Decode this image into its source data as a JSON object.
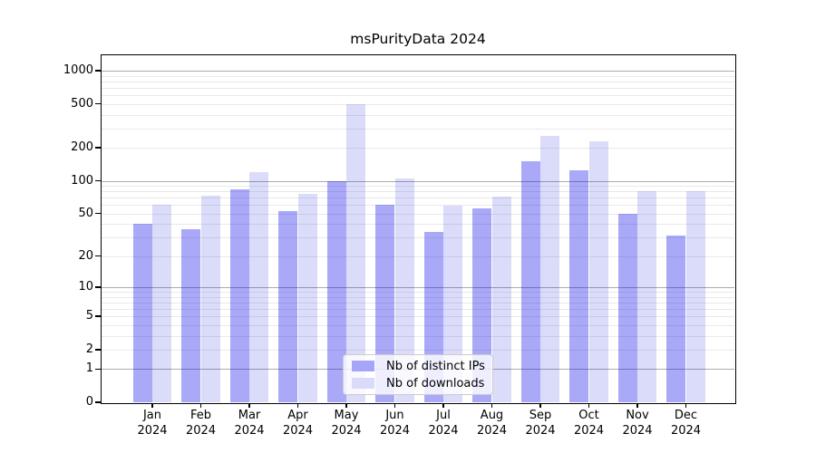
{
  "chart_data": {
    "type": "bar",
    "title": "msPurityData 2024",
    "categories": [
      "Jan 2024",
      "Feb 2024",
      "Mar 2024",
      "Apr 2024",
      "May 2024",
      "Jun 2024",
      "Jul 2024",
      "Aug 2024",
      "Sep 2024",
      "Oct 2024",
      "Nov 2024",
      "Dec 2024"
    ],
    "x_tick_lines": [
      [
        "Jan",
        "2024"
      ],
      [
        "Feb",
        "2024"
      ],
      [
        "Mar",
        "2024"
      ],
      [
        "Apr",
        "2024"
      ],
      [
        "May",
        "2024"
      ],
      [
        "Jun",
        "2024"
      ],
      [
        "Jul",
        "2024"
      ],
      [
        "Aug",
        "2024"
      ],
      [
        "Sep",
        "2024"
      ],
      [
        "Oct",
        "2024"
      ],
      [
        "Nov",
        "2024"
      ],
      [
        "Dec",
        "2024"
      ]
    ],
    "series": [
      {
        "name": "Nb of distinct IPs",
        "key": "distinct-ips",
        "color": "rgba(8,8,236,0.35)",
        "solid_color": "#a6a6f8",
        "values": [
          40,
          36,
          84,
          53,
          100,
          60,
          34,
          56,
          150,
          125,
          50,
          31
        ]
      },
      {
        "name": "Nb of downloads",
        "key": "downloads",
        "color": "rgba(16,16,224,0.15)",
        "solid_color": "#dadafa",
        "values": [
          60,
          73,
          120,
          76,
          500,
          105,
          59,
          72,
          255,
          230,
          81,
          81
        ]
      }
    ],
    "yscale": "log1p",
    "ylim": [
      0,
      1380
    ],
    "yticks": [
      0,
      1,
      2,
      5,
      10,
      20,
      50,
      100,
      200,
      500,
      1000
    ],
    "ytick_labels": [
      "0",
      "1",
      "2",
      "5",
      "10",
      "20",
      "50",
      "100",
      "200",
      "500",
      "1000"
    ],
    "minor_gridlines": [
      2,
      3,
      4,
      5,
      6,
      7,
      8,
      9,
      20,
      30,
      40,
      50,
      60,
      70,
      80,
      90,
      200,
      300,
      400,
      500,
      600,
      700,
      800,
      900
    ],
    "major_gridlines": [
      1,
      10,
      100,
      1000
    ],
    "grid": "horizontal",
    "legend_position": "lower-center-inside"
  },
  "colors": {
    "background": "#ffffff",
    "frame": "#000000",
    "major_grid": "#ababab",
    "minor_grid": "#e9e9e9",
    "text": "#000000"
  }
}
